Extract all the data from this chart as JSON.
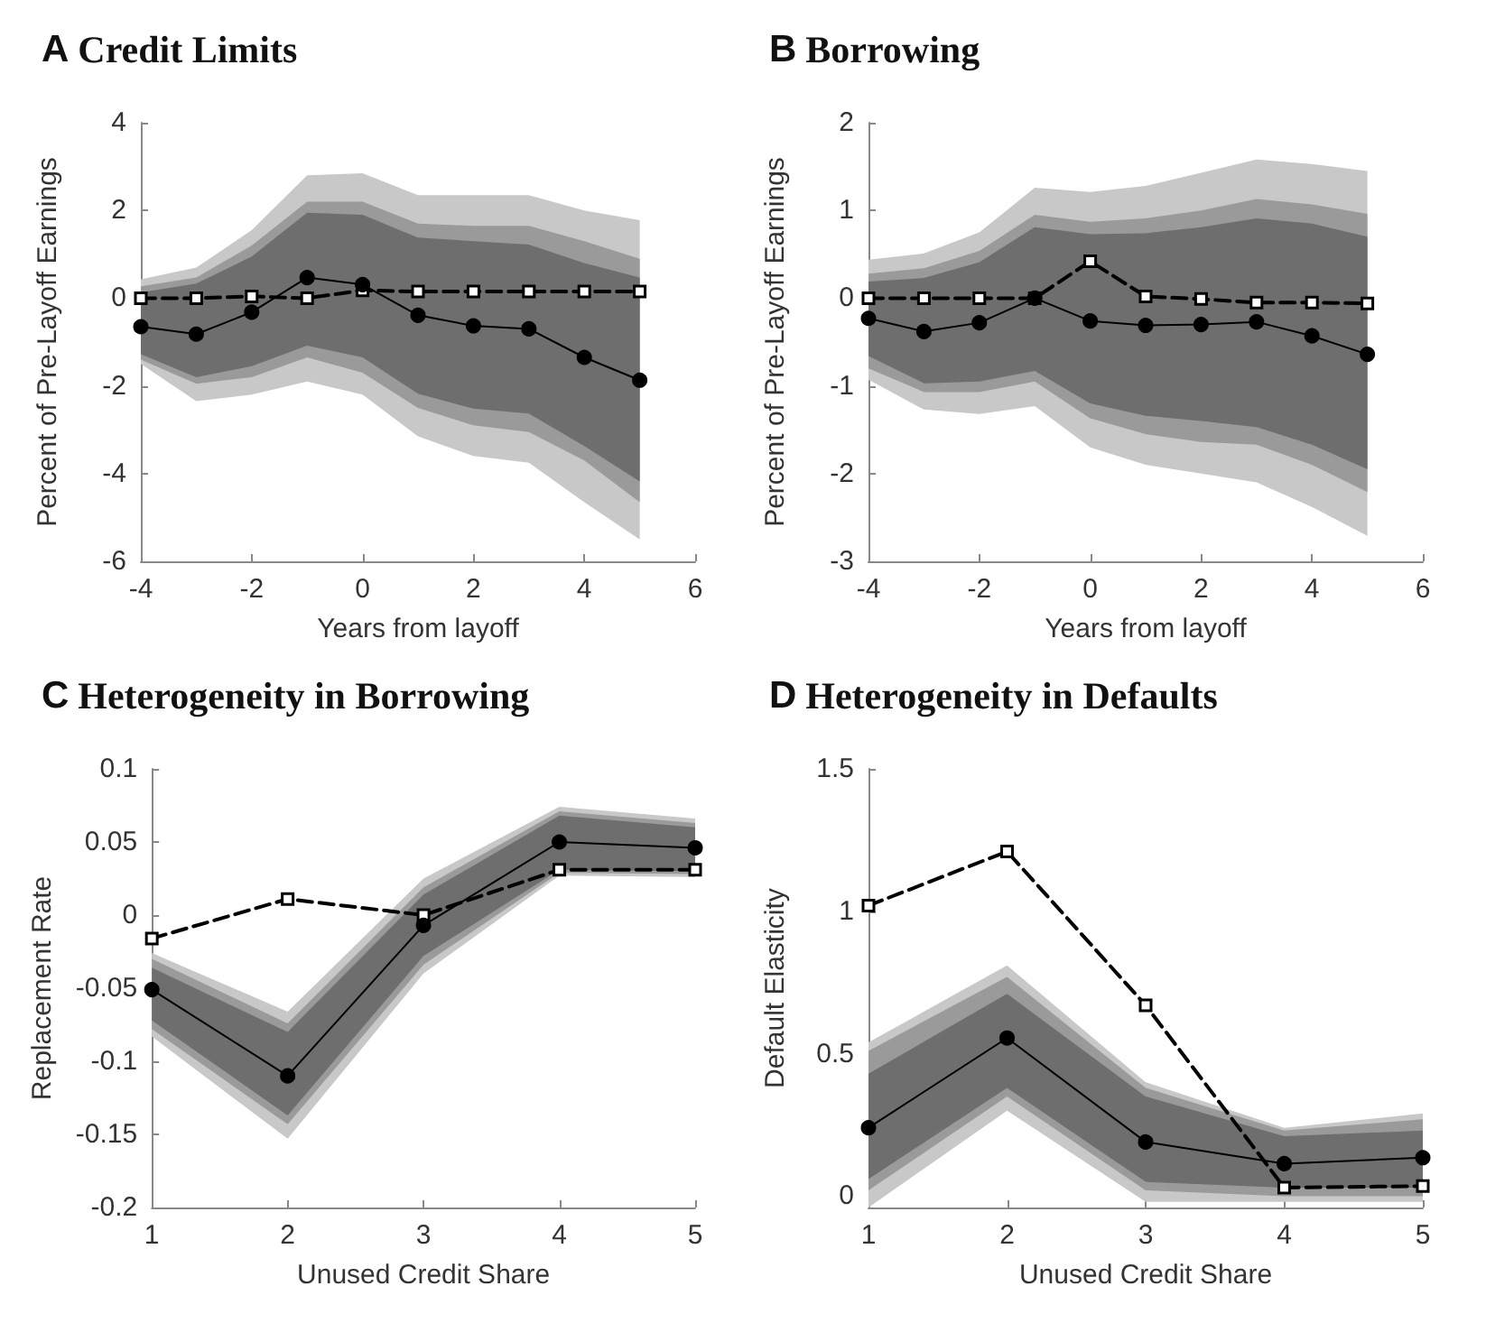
{
  "chart_data": [
    {
      "type": "line",
      "title": "A Credit Limits",
      "xlabel": "Years from layoff",
      "ylabel": "Percent of Pre-Layoff Earnings",
      "x": [
        -4,
        -3,
        -2,
        -1,
        0,
        1,
        2,
        3,
        4,
        5
      ],
      "xlim": [
        -4,
        6
      ],
      "xticks": [
        -4,
        -2,
        0,
        2,
        4,
        6
      ],
      "ylim": [
        -6,
        4
      ],
      "yticks": [
        -6,
        -4,
        -2,
        0,
        2,
        4
      ],
      "grid": false,
      "series": [
        {
          "color": "#c8c8c8",
          "values": [
            null,
            null,
            null,
            null,
            null,
            null,
            null,
            null,
            null,
            null
          ],
          "lower": [
            -1.5,
            -2.35,
            -2.2,
            -1.9,
            -2.2,
            -3.15,
            -3.6,
            -3.75,
            -4.65,
            -5.5
          ],
          "upper": [
            0.43,
            0.7,
            1.55,
            2.8,
            2.85,
            2.35,
            2.35,
            2.35,
            2.0,
            1.78
          ]
        },
        {
          "color": "#9a9a9a",
          "values": [
            null,
            null,
            null,
            null,
            null,
            null,
            null,
            null,
            null,
            null
          ],
          "lower": [
            -1.4,
            -1.95,
            -1.8,
            -1.35,
            -1.7,
            -2.5,
            -2.9,
            -3.05,
            -3.7,
            -4.65
          ],
          "upper": [
            0.27,
            0.47,
            1.2,
            2.2,
            2.2,
            1.7,
            1.65,
            1.65,
            1.3,
            0.9
          ]
        },
        {
          "color": "#6e6e6e",
          "values": [
            null,
            null,
            null,
            null,
            null,
            null,
            null,
            null,
            null,
            null
          ],
          "lower": [
            -1.28,
            -1.8,
            -1.55,
            -1.08,
            -1.35,
            -2.18,
            -2.52,
            -2.63,
            -3.37,
            -4.18
          ],
          "upper": [
            0.13,
            0.33,
            0.95,
            1.95,
            1.9,
            1.38,
            1.3,
            1.22,
            0.8,
            0.47
          ]
        },
        {
          "color": "#000000",
          "marker": "circle",
          "line_style": "solid",
          "values": [
            -0.65,
            -0.82,
            -0.32,
            0.47,
            0.31,
            -0.39,
            -0.63,
            -0.7,
            -1.35,
            -1.87
          ]
        },
        {
          "color": "#000000",
          "marker": "square",
          "line_style": "dashed",
          "values": [
            0,
            0,
            0.04,
            0,
            0.18,
            0.15,
            0.15,
            0.15,
            0.15,
            0.15
          ]
        }
      ]
    },
    {
      "type": "line",
      "title": "B Borrowing",
      "xlabel": "Years from layoff",
      "ylabel": "Percent of Pre-Layoff Earnings",
      "x": [
        -4,
        -3,
        -2,
        -1,
        0,
        1,
        2,
        3,
        4,
        5
      ],
      "xlim": [
        -4,
        6
      ],
      "xticks": [
        -4,
        -2,
        0,
        2,
        4,
        6
      ],
      "ylim": [
        -3,
        2
      ],
      "yticks": [
        -3,
        -2,
        -1,
        0,
        1,
        2
      ],
      "grid": false,
      "series": [
        {
          "color": "#c8c8c8",
          "values": [
            null,
            null,
            null,
            null,
            null,
            null,
            null,
            null,
            null,
            null
          ],
          "lower": [
            -0.93,
            -1.27,
            -1.32,
            -1.23,
            -1.7,
            -1.9,
            -2.0,
            -2.1,
            -2.38,
            -2.71
          ],
          "upper": [
            0.44,
            0.51,
            0.75,
            1.26,
            1.21,
            1.28,
            1.43,
            1.58,
            1.53,
            1.45
          ]
        },
        {
          "color": "#9a9a9a",
          "values": [
            null,
            null,
            null,
            null,
            null,
            null,
            null,
            null,
            null,
            null
          ],
          "lower": [
            -0.8,
            -1.07,
            -1.07,
            -0.95,
            -1.37,
            -1.55,
            -1.64,
            -1.67,
            -1.9,
            -2.21
          ],
          "upper": [
            0.28,
            0.34,
            0.54,
            0.95,
            0.87,
            0.91,
            1.0,
            1.13,
            1.07,
            0.96
          ]
        },
        {
          "color": "#6e6e6e",
          "values": [
            null,
            null,
            null,
            null,
            null,
            null,
            null,
            null,
            null,
            null
          ],
          "lower": [
            -0.66,
            -0.97,
            -0.95,
            -0.83,
            -1.2,
            -1.34,
            -1.4,
            -1.47,
            -1.67,
            -1.95
          ],
          "upper": [
            0.19,
            0.23,
            0.41,
            0.81,
            0.73,
            0.74,
            0.81,
            0.91,
            0.85,
            0.7
          ]
        },
        {
          "color": "#000000",
          "marker": "circle",
          "line_style": "solid",
          "values": [
            -0.23,
            -0.38,
            -0.28,
            0,
            -0.26,
            -0.31,
            -0.3,
            -0.27,
            -0.43,
            -0.64
          ]
        },
        {
          "color": "#000000",
          "marker": "square",
          "line_style": "dashed",
          "values": [
            0,
            0,
            0,
            0,
            0.42,
            0.02,
            -0.01,
            -0.05,
            -0.05,
            -0.06
          ]
        }
      ]
    },
    {
      "type": "line",
      "title": "C Heterogeneity in Borrowing",
      "xlabel": "Unused Credit Share",
      "ylabel": "Replacement Rate",
      "x": [
        1,
        2,
        3,
        4,
        5
      ],
      "xlim": [
        1,
        5
      ],
      "xticks": [
        1,
        2,
        3,
        4,
        5
      ],
      "ylim": [
        -0.2,
        0.1
      ],
      "yticks": [
        -0.2,
        -0.15,
        -0.1,
        -0.05,
        0,
        0.05,
        0.1
      ],
      "grid": false,
      "series": [
        {
          "color": "#c8c8c8",
          "values": [
            null,
            null,
            null,
            null,
            null
          ],
          "lower": [
            -0.083,
            -0.153,
            -0.04,
            0.027,
            0.026
          ],
          "upper": [
            -0.026,
            -0.066,
            0.025,
            0.074,
            0.066
          ]
        },
        {
          "color": "#9a9a9a",
          "values": [
            null,
            null,
            null,
            null,
            null
          ],
          "lower": [
            -0.078,
            -0.143,
            -0.034,
            0.029,
            0.028
          ],
          "upper": [
            -0.03,
            -0.074,
            0.019,
            0.071,
            0.063
          ]
        },
        {
          "color": "#6e6e6e",
          "values": [
            null,
            null,
            null,
            null,
            null
          ],
          "lower": [
            -0.072,
            -0.137,
            -0.028,
            0.031,
            0.03
          ],
          "upper": [
            -0.036,
            -0.08,
            0.014,
            0.068,
            0.06
          ]
        },
        {
          "color": "#000000",
          "marker": "circle",
          "line_style": "solid",
          "values": [
            -0.051,
            -0.11,
            -0.007,
            0.05,
            0.046
          ]
        },
        {
          "color": "#000000",
          "marker": "square",
          "line_style": "dashed",
          "values": [
            -0.016,
            0.011,
            0,
            0.031,
            0.031
          ]
        }
      ]
    },
    {
      "type": "line",
      "title": "D Heterogeneity in Defaults",
      "xlabel": "Unused Credit Share",
      "ylabel": "Default Elasticity",
      "x": [
        1,
        2,
        3,
        4,
        5
      ],
      "xlim": [
        1,
        5
      ],
      "xticks": [
        1,
        2,
        3,
        4,
        5
      ],
      "ylim": [
        -0.04,
        1.5
      ],
      "yticks": [
        0,
        0.5,
        1,
        1.5
      ],
      "grid": false,
      "series": [
        {
          "color": "#c8c8c8",
          "values": [
            null,
            null,
            null,
            null,
            null
          ],
          "lower": [
            -0.04,
            0.3,
            -0.02,
            -0.02,
            -0.02
          ],
          "upper": [
            0.54,
            0.81,
            0.4,
            0.24,
            0.29
          ]
        },
        {
          "color": "#9a9a9a",
          "values": [
            null,
            null,
            null,
            null,
            null
          ],
          "lower": [
            0.02,
            0.35,
            0.02,
            0,
            0
          ],
          "upper": [
            0.51,
            0.77,
            0.38,
            0.23,
            0.27
          ]
        },
        {
          "color": "#6e6e6e",
          "values": [
            null,
            null,
            null,
            null,
            null
          ],
          "lower": [
            0.06,
            0.38,
            0.05,
            0.03,
            0.03
          ],
          "upper": [
            0.43,
            0.71,
            0.35,
            0.21,
            0.23
          ]
        },
        {
          "color": "#000000",
          "marker": "circle",
          "line_style": "solid",
          "values": [
            0.24,
            0.555,
            0.19,
            0.114,
            0.135
          ]
        },
        {
          "color": "#000000",
          "marker": "square",
          "line_style": "dashed",
          "values": [
            1.02,
            1.21,
            0.67,
            0.03,
            0.035
          ]
        }
      ]
    }
  ]
}
